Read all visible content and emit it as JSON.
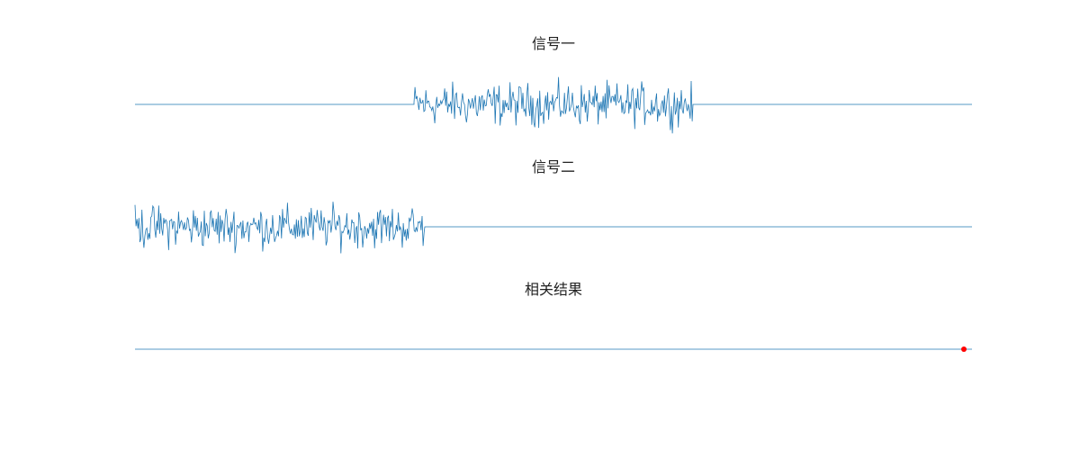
{
  "chart_data": [
    {
      "type": "line",
      "title": "信号一",
      "series": [
        {
          "color": "#1f77b4",
          "segments": [
            {
              "x_range": [
                0,
                310
              ],
              "value": 0
            },
            {
              "x_range": [
                310,
                620
              ],
              "noise_amplitude": 1.0
            },
            {
              "x_range": [
                620,
                930
              ],
              "value": 0
            }
          ]
        }
      ],
      "xlim": [
        0,
        930
      ],
      "axes_visible": false
    },
    {
      "type": "line",
      "title": "信号二",
      "series": [
        {
          "color": "#1f77b4",
          "segments": [
            {
              "x_range": [
                0,
                322
              ],
              "noise_amplitude": 1.0
            },
            {
              "x_range": [
                322,
                930
              ],
              "value": 0
            }
          ]
        }
      ],
      "xlim": [
        0,
        930
      ],
      "axes_visible": false
    },
    {
      "type": "line",
      "title": "相关结果",
      "series": [
        {
          "color": "#1f77b4",
          "value": 0,
          "x_range": [
            0,
            930
          ]
        }
      ],
      "peak_marker": {
        "x": 921,
        "color": "#ff0000"
      },
      "xlim": [
        0,
        930
      ],
      "axes_visible": false
    }
  ]
}
